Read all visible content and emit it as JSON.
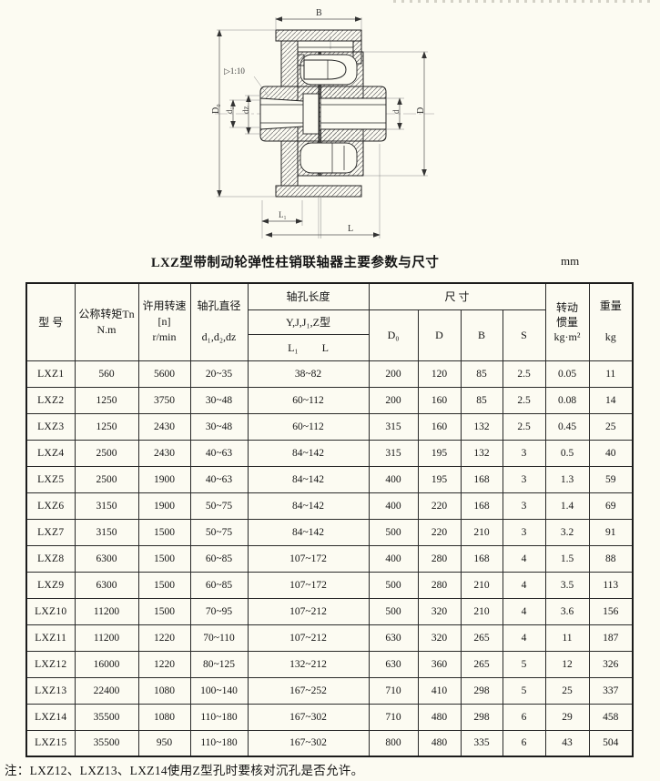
{
  "title": "LXZ型带制动轮弹性柱销联轴器主要参数与尺寸",
  "unit": "mm",
  "note": "注：LXZ12、LXZ13、LXZ14使用Z型孔时要核对沉孔是否允许。",
  "colors": {
    "paper": "#fcfbf2",
    "ink": "#1c1c1c"
  },
  "drawing": {
    "labels": {
      "B": "B",
      "D0": "D₀",
      "d1": "d₁",
      "dz": "dz",
      "d": "d",
      "D": "D",
      "L1": "L₁",
      "L": "L",
      "taper": "▷1:10"
    }
  },
  "table": {
    "header": {
      "model": "型  号",
      "torque": "公称转矩Tn\nN.m",
      "speed": "许用转速\n[n]\nr/min",
      "bore_dia": "轴孔直径\n\nd₁,d₂,dz",
      "bore_len": "轴孔长度",
      "bore_len_types": "Y,J,J₁,Z型",
      "bore_len_l1": "L₁",
      "bore_len_l": "L",
      "dims": "尺    寸",
      "D0": "D₀",
      "D": "D",
      "B": "B",
      "S": "S",
      "inertia": "转动\n惯量\nkg·m²",
      "weight": "重量\n\nkg"
    },
    "col_keys": [
      "model",
      "torque",
      "speed",
      "bore_dia",
      "bore_len",
      "D0",
      "D",
      "B",
      "S",
      "inertia",
      "weight"
    ],
    "rows": [
      [
        "LXZ1",
        "560",
        "5600",
        "20~35",
        "38~82",
        "200",
        "120",
        "85",
        "2.5",
        "0.05",
        "11"
      ],
      [
        "LXZ2",
        "1250",
        "3750",
        "30~48",
        "60~112",
        "200",
        "160",
        "85",
        "2.5",
        "0.08",
        "14"
      ],
      [
        "LXZ3",
        "1250",
        "2430",
        "30~48",
        "60~112",
        "315",
        "160",
        "132",
        "2.5",
        "0.45",
        "25"
      ],
      [
        "LXZ4",
        "2500",
        "2430",
        "40~63",
        "84~142",
        "315",
        "195",
        "132",
        "3",
        "0.5",
        "40"
      ],
      [
        "LXZ5",
        "2500",
        "1900",
        "40~63",
        "84~142",
        "400",
        "195",
        "168",
        "3",
        "1.3",
        "59"
      ],
      [
        "LXZ6",
        "3150",
        "1900",
        "50~75",
        "84~142",
        "400",
        "220",
        "168",
        "3",
        "1.4",
        "69"
      ],
      [
        "LXZ7",
        "3150",
        "1500",
        "50~75",
        "84~142",
        "500",
        "220",
        "210",
        "3",
        "3.2",
        "91"
      ],
      [
        "LXZ8",
        "6300",
        "1500",
        "60~85",
        "107~172",
        "400",
        "280",
        "168",
        "4",
        "1.5",
        "88"
      ],
      [
        "LXZ9",
        "6300",
        "1500",
        "60~85",
        "107~172",
        "500",
        "280",
        "210",
        "4",
        "3.5",
        "113"
      ],
      [
        "LXZ10",
        "11200",
        "1500",
        "70~95",
        "107~212",
        "500",
        "320",
        "210",
        "4",
        "3.6",
        "156"
      ],
      [
        "LXZ11",
        "11200",
        "1220",
        "70~110",
        "107~212",
        "630",
        "320",
        "265",
        "4",
        "11",
        "187"
      ],
      [
        "LXZ12",
        "16000",
        "1220",
        "80~125",
        "132~212",
        "630",
        "360",
        "265",
        "5",
        "12",
        "326"
      ],
      [
        "LXZ13",
        "22400",
        "1080",
        "100~140",
        "167~252",
        "710",
        "410",
        "298",
        "5",
        "25",
        "337"
      ],
      [
        "LXZ14",
        "35500",
        "1080",
        "110~180",
        "167~302",
        "710",
        "480",
        "298",
        "6",
        "29",
        "458"
      ],
      [
        "LXZ15",
        "35500",
        "950",
        "110~180",
        "167~302",
        "800",
        "480",
        "335",
        "6",
        "43",
        "504"
      ]
    ]
  }
}
